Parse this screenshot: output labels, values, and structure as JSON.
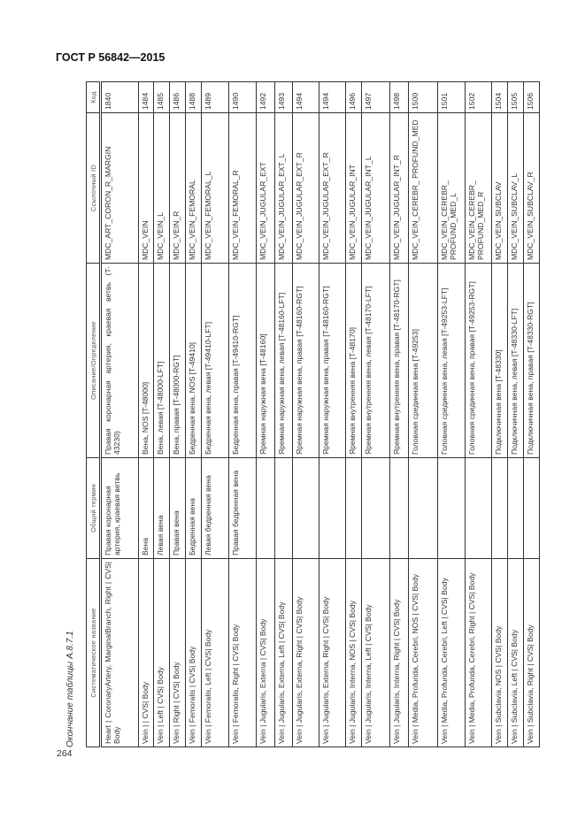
{
  "header": {
    "doc_title": "ГОСТ Р 56842—2015"
  },
  "caption": "Окончание таблицы А.8.7.1",
  "page_number": "264",
  "table": {
    "columns": [
      "Систематическое название",
      "Общий термин",
      "Описание/Определение",
      "Ссылочный ID",
      "Код"
    ],
    "rows": [
      [
        "Heart | CoronaryArtery, MarginalBranch, Right | CVS| Body",
        "Правая коронарная артерия, краевая ветвь",
        "Правая коронарная артерия, краевая ветвь (T-43230)",
        "MDC_ART_CORON_R_MARGIN",
        "1840"
      ],
      [
        "Vein | | CVS| Body",
        "Вена",
        "Вена, NOS [T-48000]",
        "MDC_VEIN",
        "1484"
      ],
      [
        "Vein | Left | CVS| Body",
        "Левая вена",
        "Вена, левая [T-48000-LFT]",
        "MDC_VEIN_L",
        "1485"
      ],
      [
        "Vein | Right | CVS| Body",
        "Правая вена",
        "Вена, правая [T-48000-RGT]",
        "MDC_VEIN_R",
        "1486"
      ],
      [
        "Vein | Femoralis | CVS| Body",
        "Бедренная вена",
        "Бедренная вена, NOS [T-49410]",
        "MDC_VEIN_FEMORAL",
        "1488"
      ],
      [
        "Vein | Femoralis, Left | CVS| Body",
        "Левая бедренная вена",
        "Бедренная вена, левая [T-49410-LFT]",
        "MDC_VEIN_FEMORAL_L",
        "1489"
      ],
      [
        "Vein | Femoralis, Right | CVS| Body",
        "Правая бедренная вена",
        "Бедренная вена, правая [T-49410-RGT]",
        "MDC_VEIN_FEMORAL_R",
        "1490"
      ],
      [
        "Vein | Jugularis, Externa | CVS| Body",
        "",
        "Яремная наружная вена [T-48160]",
        "MDC_VEIN_JUGULAR_EXT",
        "1492"
      ],
      [
        "Vein | Jugularis, Externa, Left | CVS| Body",
        "",
        "Яремная наружная вена, левая [T-48160-LFT]",
        "MDC_VEIN_JUGULAR_EXT_L",
        "1493"
      ],
      [
        "Vein | Jugularis, Externa, Right | CVS| Body",
        "",
        "Яремная наружная вена, правая [T-48160-RGT]",
        "MDC_VEIN_JUGULAR_EXT_R",
        "1494"
      ],
      [
        "Vein | Jugularis, Externa, Right | CVS| Body",
        "",
        "Яремная наружная вена, правая [T-48160-RGT]",
        "MDC_VEIN_JUGULAR_EXT_R",
        "1494"
      ],
      [
        "Vein | Jugularis, Interna, NOS | CVS| Body",
        "",
        "Яремная внутренняя вена [T-48170]",
        "MDC_VEIN_JUGULAR_INT",
        "1496"
      ],
      [
        "Vein | Jugularis, Interna, Left | CVS| Body",
        "",
        "Яремная внутренняя вена, левая [T-48170-LFT]",
        "MDC_VEIN_JUGULAR_INT_L",
        "1497"
      ],
      [
        "Vein | Jugularis, Interna, Right | CVS| Body",
        "",
        "Яремная внутренняя вена, правая [T-48170-RGT]",
        "MDC_VEIN_JUGULAR_INT_R",
        "1498"
      ],
      [
        "Vein | Media, Profunda, Cerebri, NOS | CVS| Body",
        "",
        "Головная срединная вена [T-49253]",
        "MDC_VEIN_CEREBR_ PROFUND_MED",
        "1500"
      ],
      [
        "Vein | Media, Profunda, Cerebri, Left | CVS| Body",
        "",
        "Головная срединная вена, левая [T-49253-LFT]",
        "MDC_VEIN_CEREBR_ PROFUND_MED_L",
        "1501"
      ],
      [
        "Vein | Media, Profunda, Cerebri, Right | CVS| Body",
        "",
        "Головная срединная вена, правая [T-49253-RGT]",
        "MDC_VEIN_CEREBR_ PROFUND_MED_R",
        "1502"
      ],
      [
        "Vein | Subclavia, NOS | CVS| Body",
        "",
        "Подключичная вена [T-48330]",
        "MDC_VEIN_SUBCLAV",
        "1504"
      ],
      [
        "Vein | Subclavia, Left | CVS| Body",
        "",
        "Подключичная вена, левая [T-48330-LFT]",
        "MDC_VEIN_SUBCLAV_L",
        "1505"
      ],
      [
        "Vein | Subclavia, Right | CVS| Body",
        "",
        "Подключичная вена, правая [T-48330-RGT]",
        "MDC_VEIN_SUBCLAV_R",
        "1506"
      ]
    ]
  }
}
